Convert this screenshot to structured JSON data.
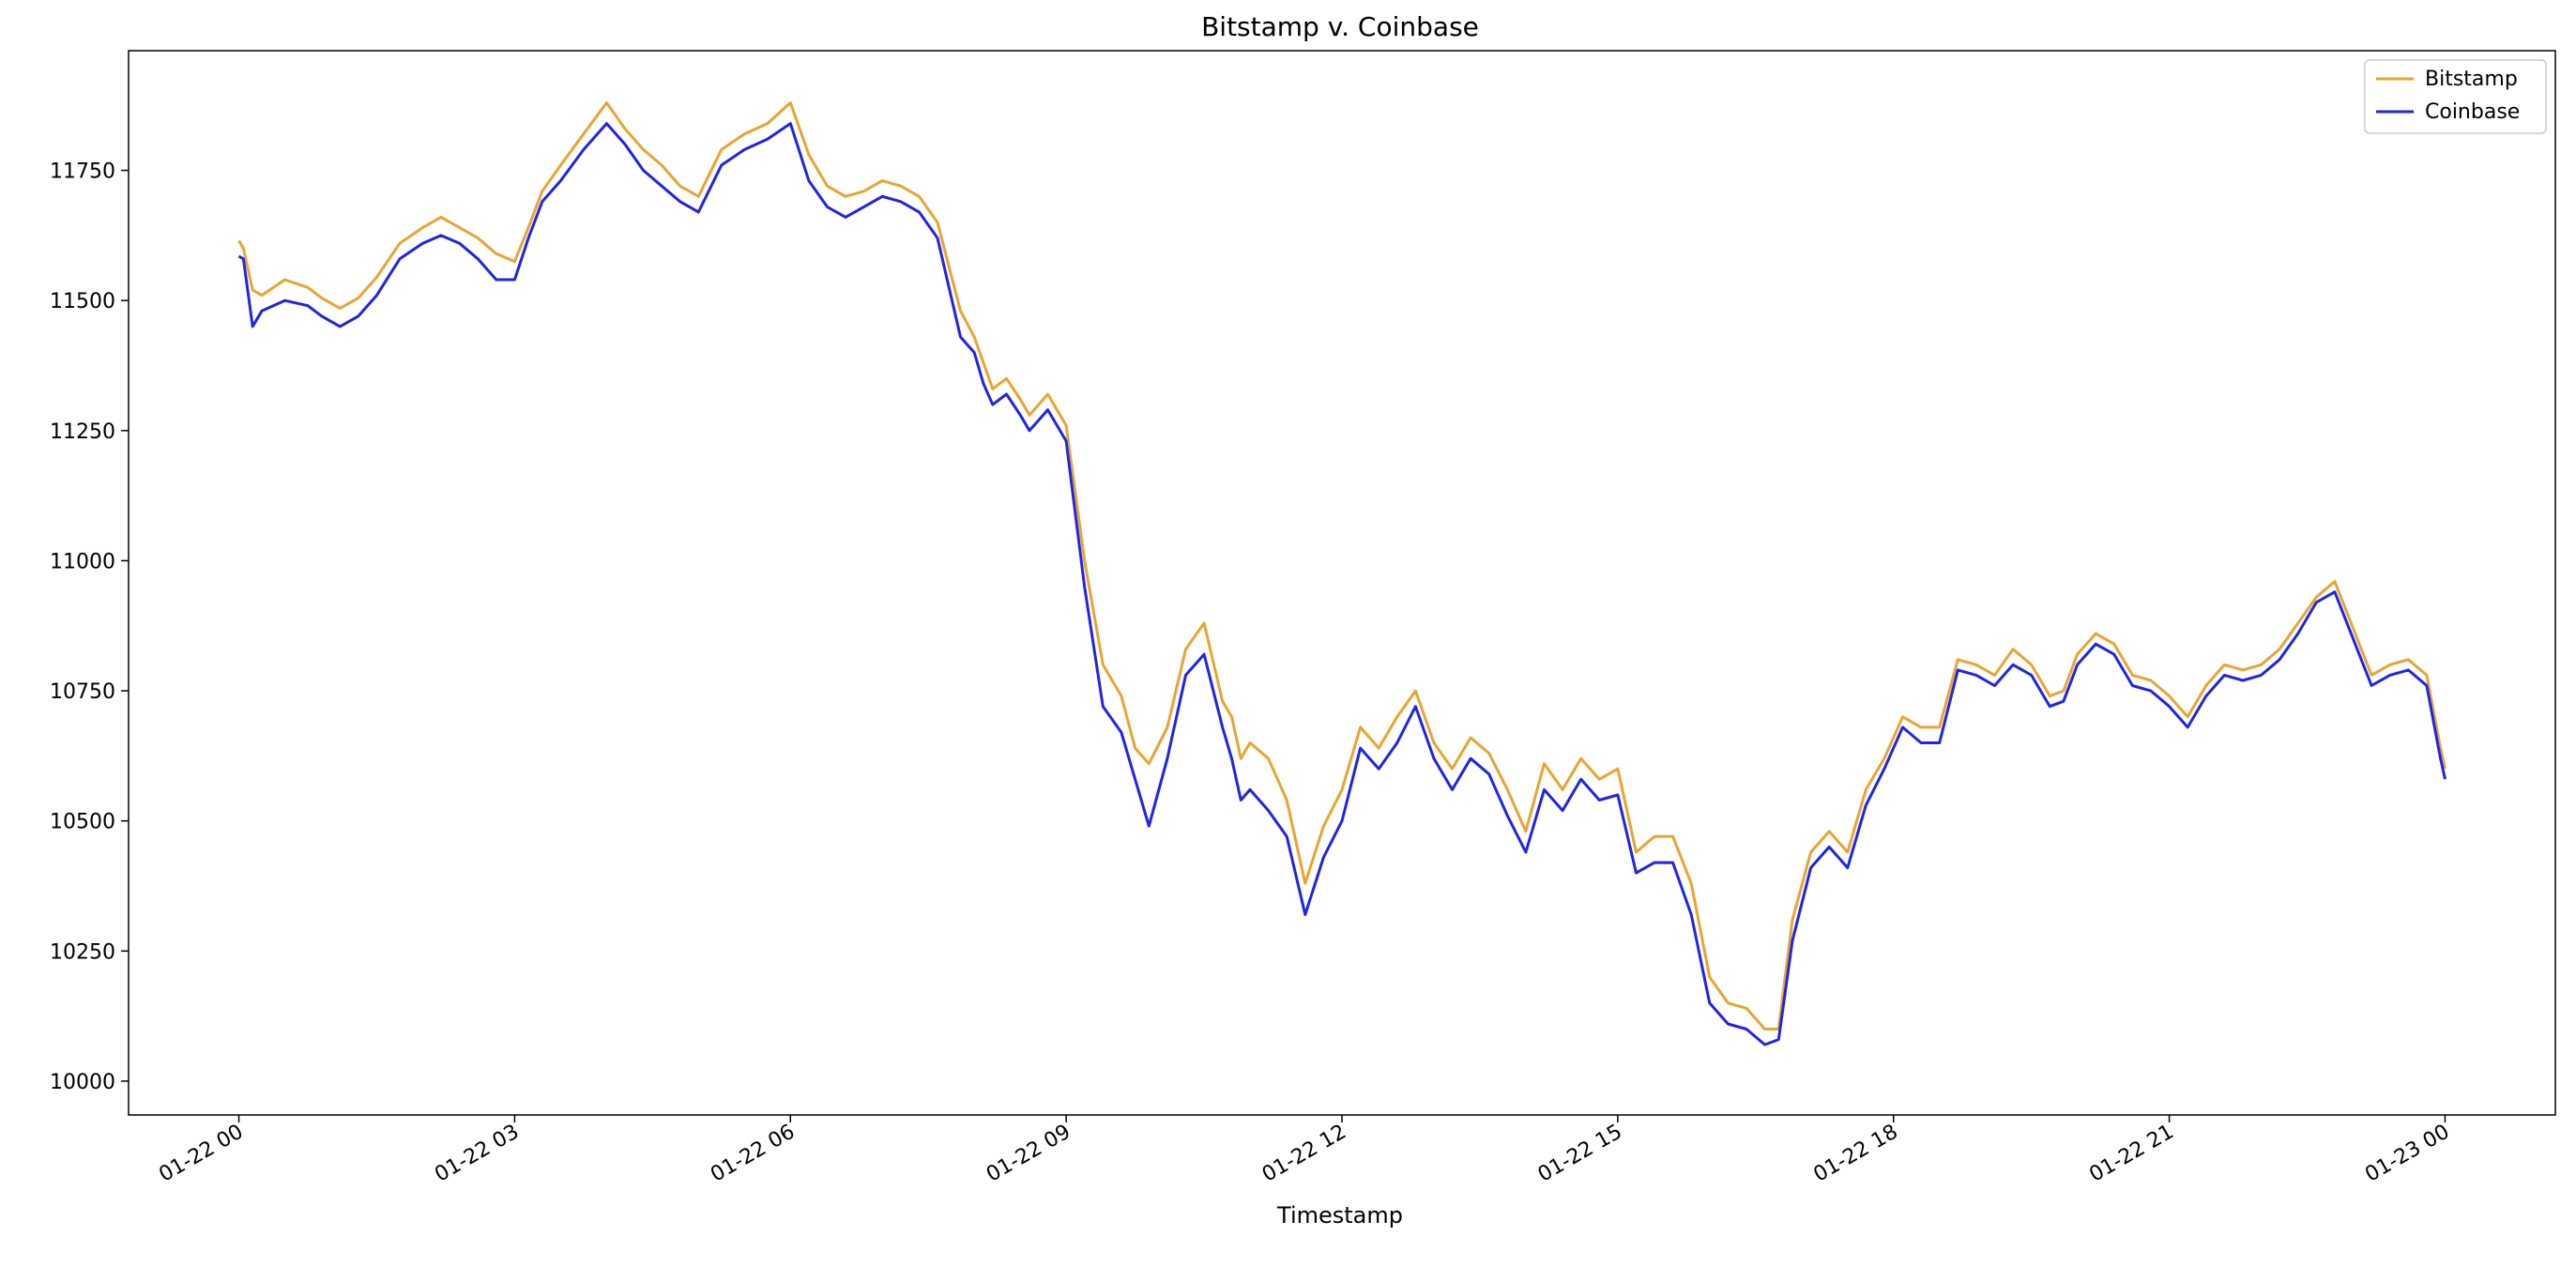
{
  "chart_data": {
    "type": "line",
    "title": "Bitstamp v. Coinbase",
    "xlabel": "Timestamp",
    "ylabel": "",
    "x_tick_labels": [
      "01-22 00",
      "01-22 03",
      "01-22 06",
      "01-22 09",
      "01-22 12",
      "01-22 15",
      "01-22 18",
      "01-22 21",
      "01-23 00"
    ],
    "x_tick_hours": [
      0,
      3,
      6,
      9,
      12,
      15,
      18,
      21,
      24
    ],
    "y_ticks": [
      10000,
      10250,
      10500,
      10750,
      11000,
      11250,
      11500,
      11750
    ],
    "xlim_hours": [
      -1.2,
      25.2
    ],
    "ylim": [
      9935,
      11980
    ],
    "grid": false,
    "legend_position": "top-right",
    "series": [
      {
        "name": "Bitstamp",
        "color": "#e8a531",
        "x_hours": [
          0,
          0.05,
          0.15,
          0.25,
          0.5,
          0.75,
          0.9,
          1.1,
          1.3,
          1.5,
          1.75,
          2.0,
          2.2,
          2.4,
          2.6,
          2.8,
          3.0,
          3.15,
          3.3,
          3.5,
          3.75,
          4.0,
          4.2,
          4.4,
          4.6,
          4.8,
          5.0,
          5.25,
          5.5,
          5.75,
          6.0,
          6.2,
          6.4,
          6.6,
          6.8,
          7.0,
          7.2,
          7.4,
          7.6,
          7.85,
          8.0,
          8.1,
          8.2,
          8.35,
          8.5,
          8.6,
          8.7,
          8.8,
          8.9,
          9.0,
          9.2,
          9.4,
          9.6,
          9.75,
          9.9,
          10.1,
          10.3,
          10.5,
          10.7,
          10.8,
          10.9,
          11.0,
          11.2,
          11.4,
          11.6,
          11.8,
          12.0,
          12.2,
          12.4,
          12.6,
          12.8,
          13.0,
          13.2,
          13.4,
          13.6,
          13.8,
          14.0,
          14.2,
          14.4,
          14.6,
          14.8,
          15.0,
          15.2,
          15.4,
          15.6,
          15.8,
          16.0,
          16.2,
          16.4,
          16.6,
          16.75,
          16.9,
          17.1,
          17.3,
          17.5,
          17.7,
          17.9,
          18.1,
          18.3,
          18.5,
          18.7,
          18.9,
          19.1,
          19.3,
          19.5,
          19.7,
          19.85,
          20.0,
          20.2,
          20.4,
          20.6,
          20.8,
          21.0,
          21.2,
          21.4,
          21.6,
          21.8,
          22.0,
          22.2,
          22.4,
          22.6,
          22.8,
          23.0,
          23.2,
          23.4,
          23.6,
          23.8,
          23.95,
          24.0
        ],
        "values": [
          11615,
          11600,
          11520,
          11510,
          11540,
          11525,
          11505,
          11485,
          11505,
          11545,
          11610,
          11640,
          11660,
          11640,
          11620,
          11590,
          11575,
          11640,
          11710,
          11760,
          11820,
          11880,
          11830,
          11790,
          11760,
          11720,
          11700,
          11790,
          11820,
          11840,
          11880,
          11780,
          11720,
          11700,
          11710,
          11730,
          11720,
          11700,
          11650,
          11480,
          11430,
          11380,
          11330,
          11350,
          11310,
          11280,
          11300,
          11320,
          11290,
          11260,
          11000,
          10800,
          10740,
          10640,
          10610,
          10680,
          10830,
          10880,
          10730,
          10700,
          10620,
          10650,
          10620,
          10540,
          10380,
          10490,
          10560,
          10680,
          10640,
          10700,
          10750,
          10650,
          10600,
          10660,
          10630,
          10560,
          10480,
          10610,
          10560,
          10620,
          10580,
          10600,
          10440,
          10470,
          10470,
          10380,
          10200,
          10150,
          10140,
          10100,
          10100,
          10310,
          10440,
          10480,
          10440,
          10560,
          10620,
          10700,
          10680,
          10680,
          10810,
          10800,
          10780,
          10830,
          10800,
          10740,
          10750,
          10820,
          10860,
          10840,
          10780,
          10770,
          10740,
          10700,
          10760,
          10800,
          10790,
          10800,
          10830,
          10880,
          10930,
          10960,
          10870,
          10780,
          10800,
          10810,
          10780,
          10640,
          10600
        ]
      },
      {
        "name": "Coinbase",
        "color": "#1f24e8",
        "x_hours": [
          0,
          0.05,
          0.15,
          0.25,
          0.5,
          0.75,
          0.9,
          1.1,
          1.3,
          1.5,
          1.75,
          2.0,
          2.2,
          2.4,
          2.6,
          2.8,
          3.0,
          3.15,
          3.3,
          3.5,
          3.75,
          4.0,
          4.2,
          4.4,
          4.6,
          4.8,
          5.0,
          5.25,
          5.5,
          5.75,
          6.0,
          6.2,
          6.4,
          6.6,
          6.8,
          7.0,
          7.2,
          7.4,
          7.6,
          7.85,
          8.0,
          8.1,
          8.2,
          8.35,
          8.5,
          8.6,
          8.7,
          8.8,
          8.9,
          9.0,
          9.2,
          9.4,
          9.6,
          9.75,
          9.9,
          10.1,
          10.3,
          10.5,
          10.7,
          10.8,
          10.9,
          11.0,
          11.2,
          11.4,
          11.6,
          11.8,
          12.0,
          12.2,
          12.4,
          12.6,
          12.8,
          13.0,
          13.2,
          13.4,
          13.6,
          13.8,
          14.0,
          14.2,
          14.4,
          14.6,
          14.8,
          15.0,
          15.2,
          15.4,
          15.6,
          15.8,
          16.0,
          16.2,
          16.4,
          16.6,
          16.75,
          16.9,
          17.1,
          17.3,
          17.5,
          17.7,
          17.9,
          18.1,
          18.3,
          18.5,
          18.7,
          18.9,
          19.1,
          19.3,
          19.5,
          19.7,
          19.85,
          20.0,
          20.2,
          20.4,
          20.6,
          20.8,
          21.0,
          21.2,
          21.4,
          21.6,
          21.8,
          22.0,
          22.2,
          22.4,
          22.6,
          22.8,
          23.0,
          23.2,
          23.4,
          23.6,
          23.8,
          23.95,
          24.0
        ],
        "values": [
          11585,
          11580,
          11450,
          11480,
          11500,
          11490,
          11470,
          11450,
          11470,
          11510,
          11580,
          11610,
          11625,
          11610,
          11580,
          11540,
          11540,
          11620,
          11690,
          11730,
          11790,
          11840,
          11800,
          11750,
          11720,
          11690,
          11670,
          11760,
          11790,
          11810,
          11840,
          11730,
          11680,
          11660,
          11680,
          11700,
          11690,
          11670,
          11620,
          11430,
          11400,
          11340,
          11300,
          11320,
          11280,
          11250,
          11270,
          11290,
          11260,
          11230,
          10950,
          10720,
          10670,
          10580,
          10490,
          10620,
          10780,
          10820,
          10680,
          10620,
          10540,
          10560,
          10520,
          10470,
          10320,
          10430,
          10500,
          10640,
          10600,
          10650,
          10720,
          10620,
          10560,
          10620,
          10590,
          10510,
          10440,
          10560,
          10520,
          10580,
          10540,
          10550,
          10400,
          10420,
          10420,
          10320,
          10150,
          10110,
          10100,
          10070,
          10080,
          10270,
          10410,
          10450,
          10410,
          10530,
          10600,
          10680,
          10650,
          10650,
          10790,
          10780,
          10760,
          10800,
          10780,
          10720,
          10730,
          10800,
          10840,
          10820,
          10760,
          10750,
          10720,
          10680,
          10740,
          10780,
          10770,
          10780,
          10810,
          10860,
          10920,
          10940,
          10850,
          10760,
          10780,
          10790,
          10760,
          10620,
          10580
        ]
      }
    ]
  }
}
